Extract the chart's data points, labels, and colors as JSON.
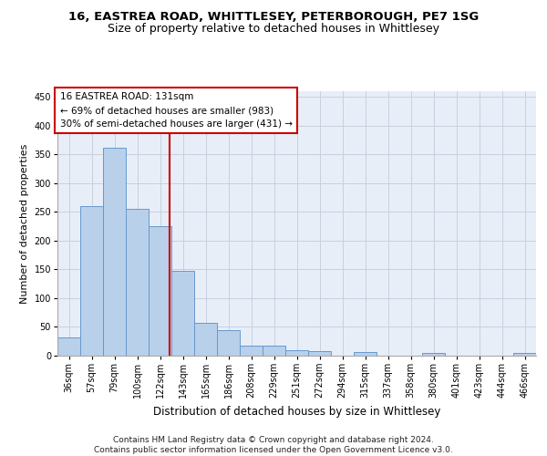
{
  "title": "16, EASTREA ROAD, WHITTLESEY, PETERBOROUGH, PE7 1SG",
  "subtitle": "Size of property relative to detached houses in Whittlesey",
  "xlabel": "Distribution of detached houses by size in Whittlesey",
  "ylabel": "Number of detached properties",
  "categories": [
    "36sqm",
    "57sqm",
    "79sqm",
    "100sqm",
    "122sqm",
    "143sqm",
    "165sqm",
    "186sqm",
    "208sqm",
    "229sqm",
    "251sqm",
    "272sqm",
    "294sqm",
    "315sqm",
    "337sqm",
    "358sqm",
    "380sqm",
    "401sqm",
    "423sqm",
    "444sqm",
    "466sqm"
  ],
  "values": [
    32,
    260,
    362,
    256,
    226,
    148,
    57,
    45,
    18,
    18,
    10,
    8,
    0,
    6,
    0,
    0,
    4,
    0,
    0,
    0,
    4
  ],
  "bar_color": "#b8d0ea",
  "bar_edge_color": "#6699cc",
  "vline_color": "#cc0000",
  "annotation_text": "16 EASTREA ROAD: 131sqm\n← 69% of detached houses are smaller (983)\n30% of semi-detached houses are larger (431) →",
  "annotation_box_color": "#ffffff",
  "annotation_box_edge": "#cc0000",
  "ylim": [
    0,
    460
  ],
  "yticks": [
    0,
    50,
    100,
    150,
    200,
    250,
    300,
    350,
    400,
    450
  ],
  "background_color": "#e8eef8",
  "grid_color": "#c8d0e0",
  "footer": "Contains HM Land Registry data © Crown copyright and database right 2024.\nContains public sector information licensed under the Open Government Licence v3.0.",
  "title_fontsize": 9.5,
  "subtitle_fontsize": 9,
  "xlabel_fontsize": 8.5,
  "ylabel_fontsize": 8,
  "tick_fontsize": 7,
  "annotation_fontsize": 7.5,
  "footer_fontsize": 6.5
}
